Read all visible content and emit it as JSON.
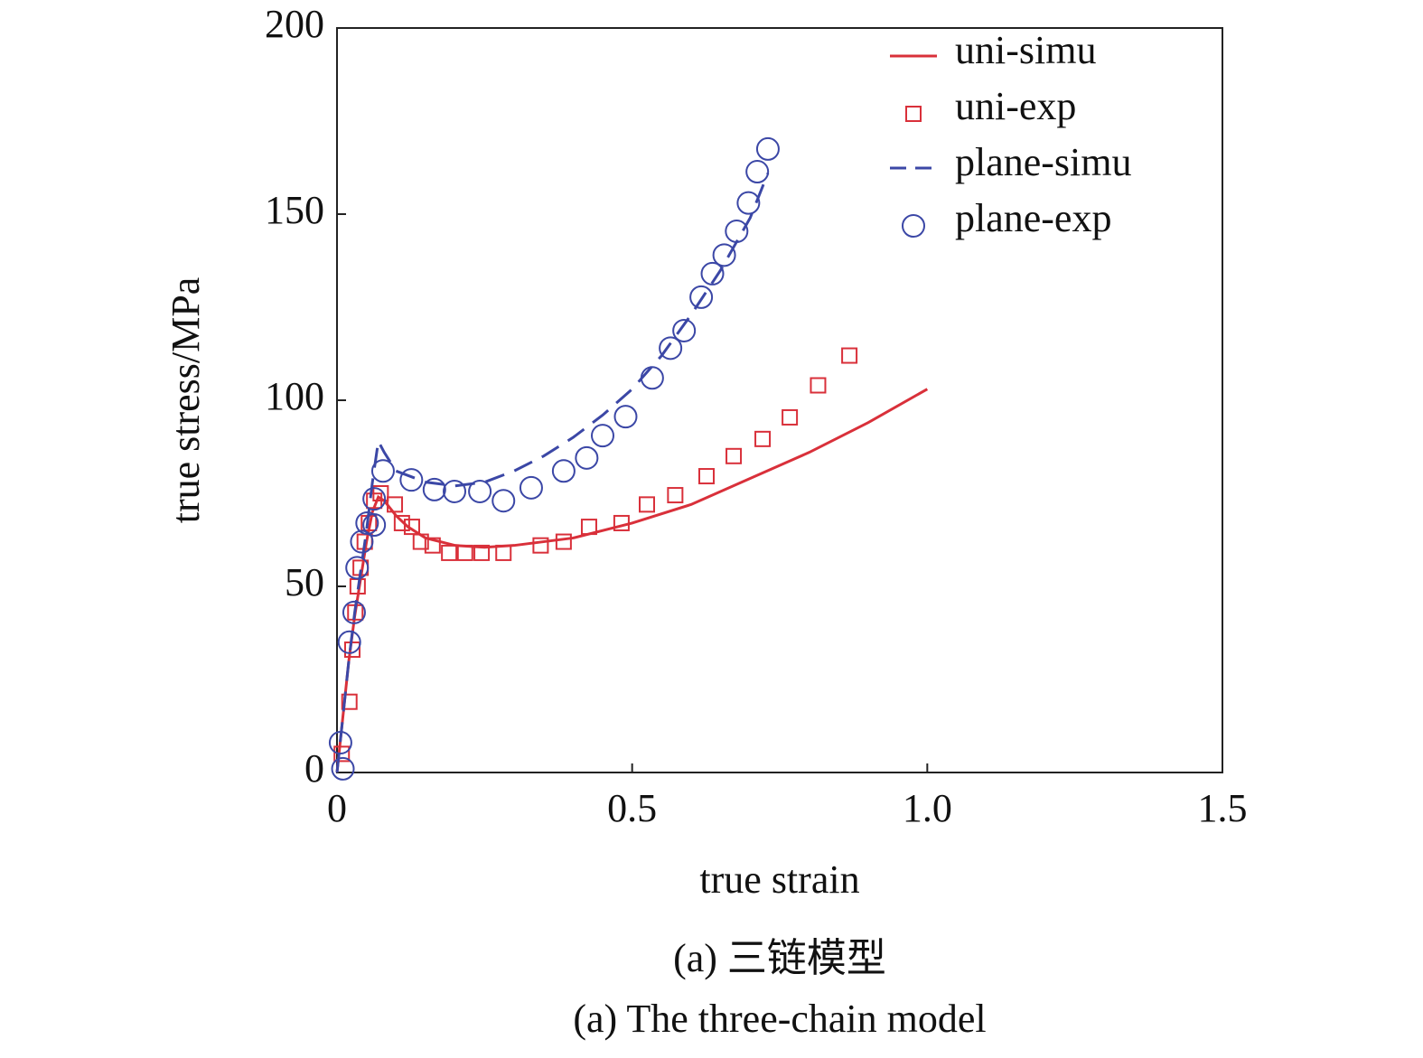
{
  "chart_data": {
    "type": "line",
    "xlabel": "true strain",
    "ylabel": "true stress/MPa",
    "caption": [
      "(a) 三链模型",
      "(a) The three-chain model"
    ],
    "xlim": [
      0,
      1.5
    ],
    "ylim": [
      0,
      200
    ],
    "xticks": [
      0,
      0.5,
      {
        "value": 1,
        "label": "1.0"
      },
      1.5
    ],
    "yticks": [
      0,
      50,
      100,
      150,
      200
    ],
    "legend": "upper right",
    "series": [
      {
        "name": "uni-simu",
        "color": "#d9303a",
        "style": "line",
        "x": [
          0,
          0.01,
          0.02,
          0.03,
          0.04,
          0.05,
          0.06,
          0.07,
          0.08,
          0.1,
          0.12,
          0.15,
          0.2,
          0.25,
          0.3,
          0.4,
          0.5,
          0.6,
          0.7,
          0.8,
          0.9,
          1.0
        ],
        "values": [
          0,
          15,
          30,
          42,
          52,
          62,
          70,
          74,
          73,
          69,
          66,
          63,
          61,
          60.5,
          61,
          63,
          67,
          72,
          79,
          86,
          94,
          103
        ]
      },
      {
        "name": "uni-exp",
        "color": "#d9303a",
        "style": "square",
        "x": [
          0.008,
          0.021,
          0.026,
          0.031,
          0.035,
          0.04,
          0.047,
          0.054,
          0.063,
          0.074,
          0.098,
          0.11,
          0.127,
          0.142,
          0.162,
          0.19,
          0.217,
          0.245,
          0.282,
          0.345,
          0.384,
          0.427,
          0.482,
          0.525,
          0.573,
          0.626,
          0.672,
          0.721,
          0.767,
          0.815,
          0.868
        ],
        "values": [
          5,
          19,
          33,
          43,
          50,
          55,
          62,
          67,
          73,
          75,
          72,
          67,
          66,
          62,
          61,
          59,
          59,
          59,
          59,
          61,
          62,
          66,
          67,
          72,
          74.5,
          79.6,
          85,
          89.6,
          95.4,
          104,
          112
        ]
      },
      {
        "name": "plane-simu",
        "color": "#3b47a6",
        "style": "dashed",
        "x": [
          0,
          0.01,
          0.02,
          0.03,
          0.04,
          0.05,
          0.06,
          0.07,
          0.08,
          0.1,
          0.15,
          0.2,
          0.25,
          0.3,
          0.35,
          0.4,
          0.45,
          0.5,
          0.55,
          0.6,
          0.65,
          0.7,
          0.73
        ],
        "values": [
          0,
          15,
          30,
          43,
          54,
          65,
          78,
          89,
          86,
          81,
          78,
          77,
          78,
          81,
          85,
          90,
          96,
          103,
          112,
          123,
          135,
          149,
          161
        ]
      },
      {
        "name": "plane-exp",
        "color": "#3b47a6",
        "style": "circle",
        "x": [
          0.01,
          0.006,
          0.021,
          0.029,
          0.034,
          0.042,
          0.051,
          0.063,
          0.063,
          0.078,
          0.126,
          0.165,
          0.199,
          0.242,
          0.282,
          0.329,
          0.384,
          0.423,
          0.45,
          0.489,
          0.534,
          0.565,
          0.588,
          0.617,
          0.636,
          0.656,
          0.677,
          0.697,
          0.712,
          0.73
        ],
        "values": [
          1,
          8,
          35,
          43,
          55,
          62,
          67,
          73.5,
          66.5,
          81,
          78.6,
          76,
          75.5,
          75.5,
          73,
          76.5,
          81,
          84.5,
          90.5,
          95.6,
          106,
          114,
          118.7,
          127.7,
          134,
          139,
          145.4,
          153,
          161.4,
          167.5
        ]
      }
    ]
  }
}
